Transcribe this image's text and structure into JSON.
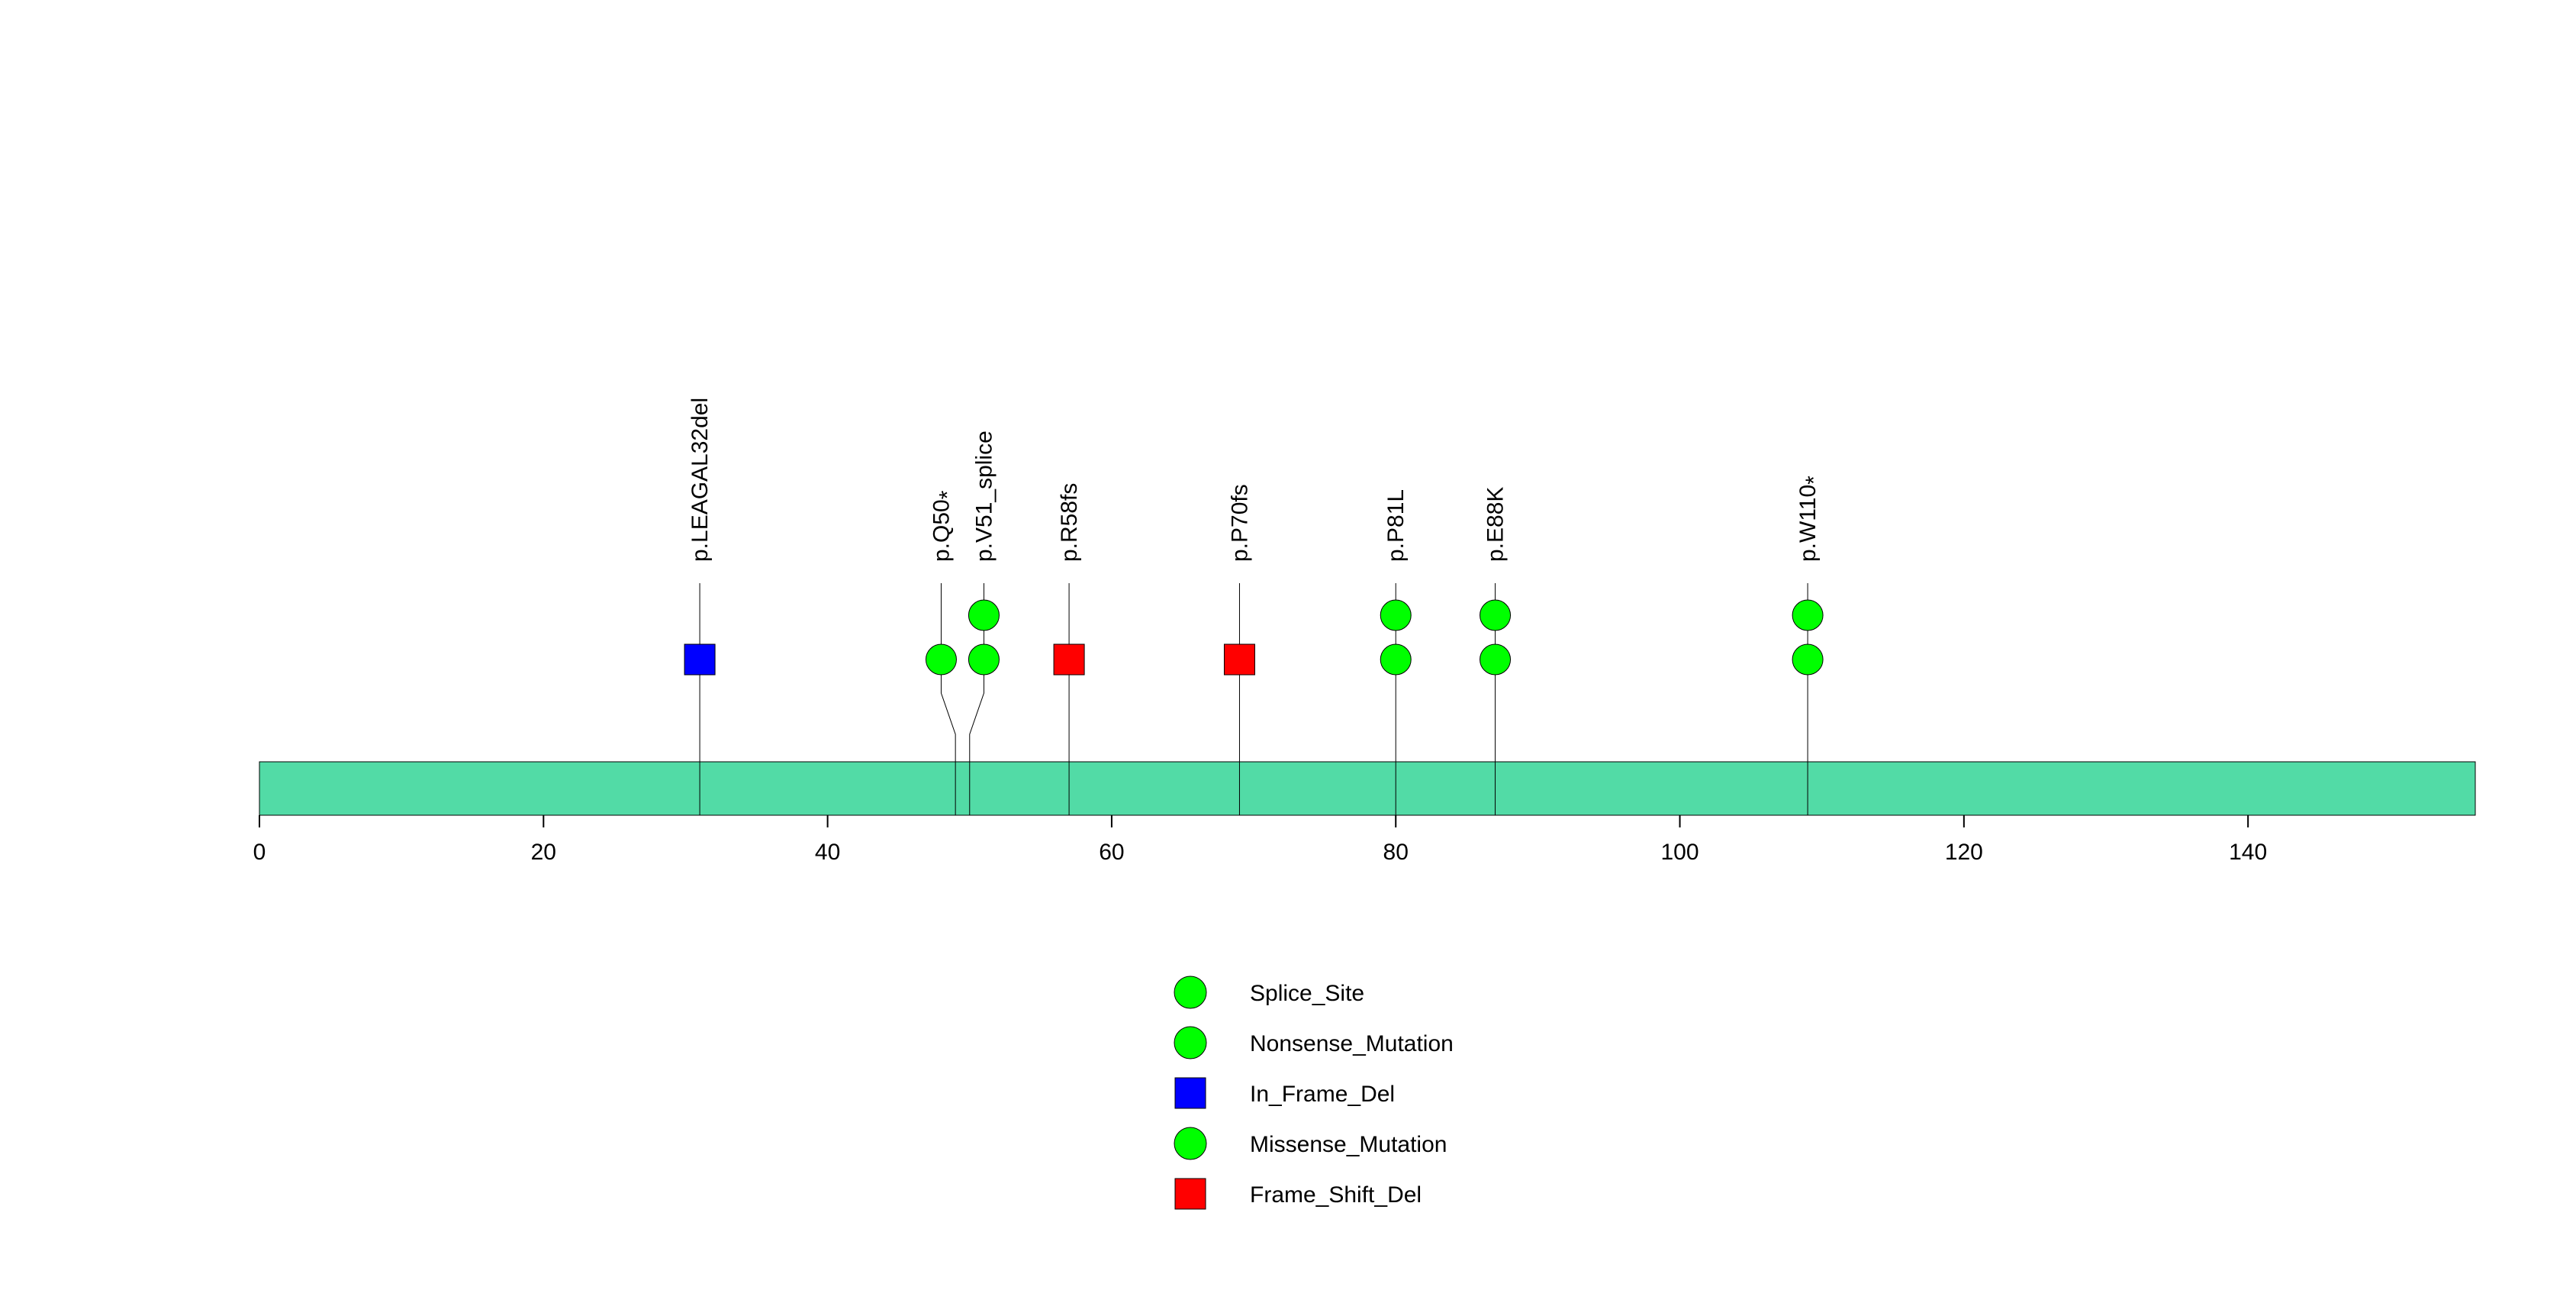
{
  "chart_data": {
    "type": "lollipop",
    "protein_length": 156,
    "domain_color": "#52DBA6",
    "xlim": [
      0,
      156
    ],
    "ticks": [
      0,
      20,
      40,
      60,
      80,
      100,
      120,
      140
    ],
    "tick_labels": [
      "0",
      "20",
      "40",
      "60",
      "80",
      "100",
      "120",
      "140"
    ],
    "mutations": [
      {
        "position": 31,
        "label": "p.LEAGAL32del",
        "star": false,
        "markers": [
          "In_Frame_Del"
        ]
      },
      {
        "position": 49,
        "label": "p.Q50",
        "star": true,
        "markers": [
          "Nonsense_Mutation"
        ]
      },
      {
        "position": 50,
        "label": "p.V51_splice",
        "star": false,
        "markers": [
          "Splice_Site",
          "Splice_Site"
        ]
      },
      {
        "position": 57,
        "label": "p.R58fs",
        "star": false,
        "markers": [
          "Frame_Shift_Del"
        ]
      },
      {
        "position": 69,
        "label": "p.P70fs",
        "star": false,
        "markers": [
          "Frame_Shift_Del"
        ]
      },
      {
        "position": 80,
        "label": "p.P81L",
        "star": false,
        "markers": [
          "Missense_Mutation",
          "Missense_Mutation"
        ]
      },
      {
        "position": 87,
        "label": "p.E88K",
        "star": false,
        "markers": [
          "Missense_Mutation",
          "Missense_Mutation"
        ]
      },
      {
        "position": 109,
        "label": "p.W110",
        "star": true,
        "markers": [
          "Nonsense_Mutation",
          "Nonsense_Mutation"
        ]
      }
    ],
    "legend": [
      {
        "label": "Splice_Site",
        "shape": "circle",
        "color": "#00FF00"
      },
      {
        "label": "Nonsense_Mutation",
        "shape": "circle",
        "color": "#00FF00"
      },
      {
        "label": "In_Frame_Del",
        "shape": "square",
        "color": "#0000FF"
      },
      {
        "label": "Missense_Mutation",
        "shape": "circle",
        "color": "#00FF00"
      },
      {
        "label": "Frame_Shift_Del",
        "shape": "square",
        "color": "#FF0000"
      }
    ],
    "star_symbol": "*"
  }
}
